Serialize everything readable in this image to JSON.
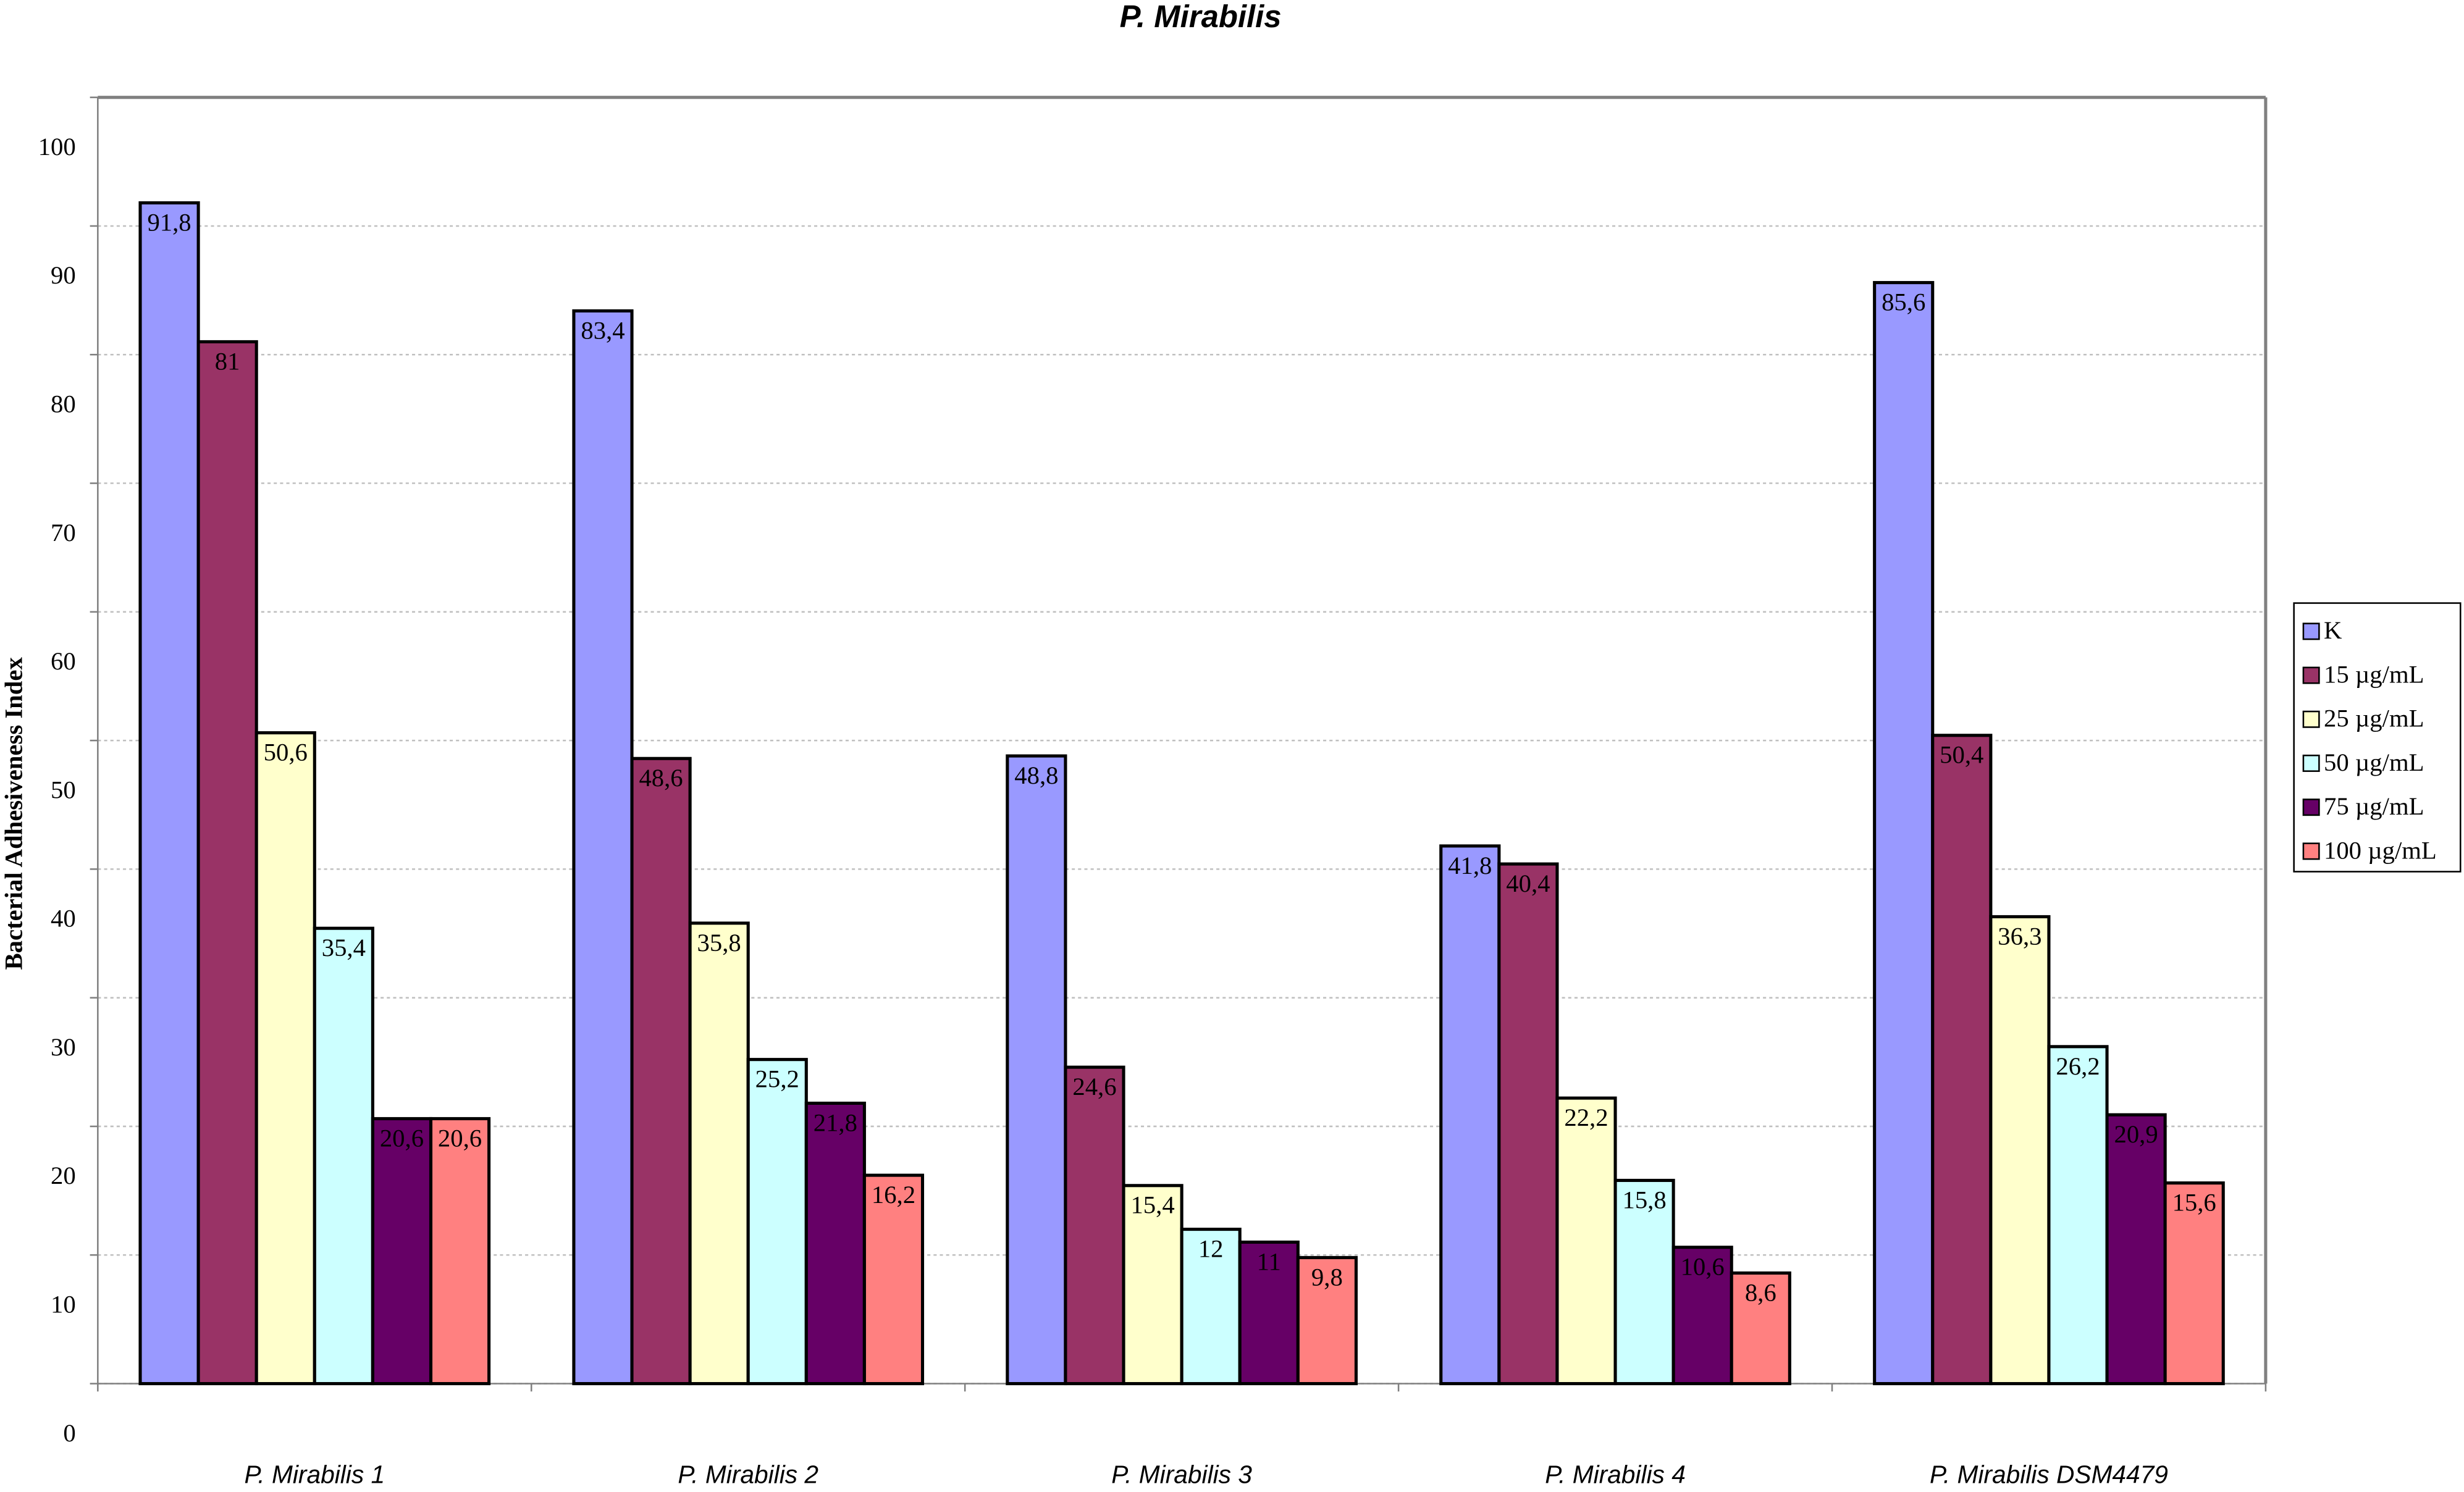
{
  "chart_data": {
    "type": "bar",
    "title": "P. Mirabilis",
    "y_label": "Bacterial Adhesiveness Index",
    "categories": [
      "P. Mirabilis 1",
      "P. Mirabilis 2",
      "P. Mirabilis 3",
      "P. Mirabilis 4",
      "P. Mirabilis DSM4479"
    ],
    "series": [
      {
        "name": "K",
        "color": "#9999ff",
        "values": [
          91.8,
          83.4,
          48.8,
          41.8,
          85.6
        ],
        "value_labels": [
          "91,8",
          "83,4",
          "48,8",
          "41,8",
          "85,6"
        ]
      },
      {
        "name": "15 µg/mL",
        "color": "#993366",
        "values": [
          81,
          48.6,
          24.6,
          40.4,
          50.4
        ],
        "value_labels": [
          "81",
          "48,6",
          "24,6",
          "40,4",
          "50,4"
        ]
      },
      {
        "name": "25 µg/mL",
        "color": "#ffffcc",
        "values": [
          50.6,
          35.8,
          15.4,
          22.2,
          36.3
        ],
        "value_labels": [
          "50,6",
          "35,8",
          "15,4",
          "22,2",
          "36,3"
        ]
      },
      {
        "name": "50 µg/mL",
        "color": "#ccffff",
        "values": [
          35.4,
          25.2,
          12,
          15.8,
          26.2
        ],
        "value_labels": [
          "35,4",
          "25,2",
          "12",
          "15,8",
          "26,2"
        ]
      },
      {
        "name": "75 µg/mL",
        "color": "#660066",
        "values": [
          20.6,
          21.8,
          11,
          10.6,
          20.9
        ],
        "value_labels": [
          "20,6",
          "21,8",
          "11",
          "10,6",
          "20,9"
        ]
      },
      {
        "name": "100 µg/mL",
        "color": "#ff8080",
        "values": [
          20.6,
          16.2,
          9.8,
          8.6,
          15.6
        ],
        "value_labels": [
          "20,6",
          "16,2",
          "9,8",
          "8,6",
          "15,6"
        ]
      }
    ],
    "ylim": [
      0,
      100
    ],
    "yticks": [
      0,
      10,
      20,
      30,
      40,
      50,
      60,
      70,
      80,
      90,
      100
    ],
    "grid": true,
    "legend": "right"
  }
}
